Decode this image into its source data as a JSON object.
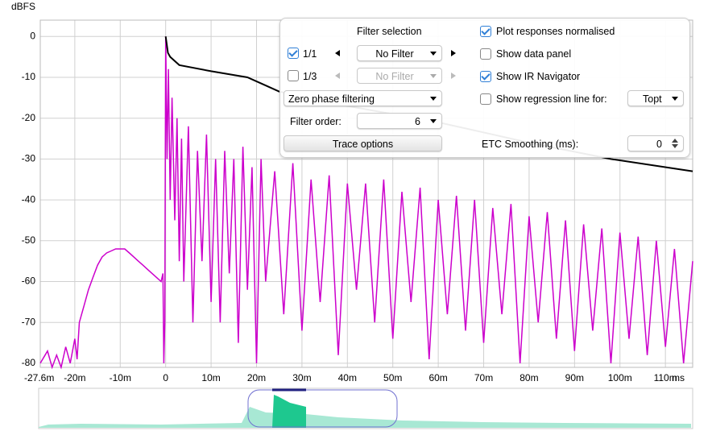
{
  "chart_data": {
    "type": "line",
    "y_label": "dBFS",
    "x_label": "ms",
    "xlim": [
      -27.6,
      116
    ],
    "ylim": [
      -81,
      4
    ],
    "xticks": [
      {
        "value": -27.6,
        "label": "-27.6m"
      },
      {
        "value": -20,
        "label": "-20m"
      },
      {
        "value": -10,
        "label": "-10m"
      },
      0,
      {
        "value": 10,
        "label": "10m"
      },
      {
        "value": 20,
        "label": "20m"
      },
      {
        "value": 30,
        "label": "30m"
      },
      {
        "value": 40,
        "label": "40m"
      },
      {
        "value": 50,
        "label": "50m"
      },
      {
        "value": 60,
        "label": "60m"
      },
      {
        "value": 70,
        "label": "70m"
      },
      {
        "value": 80,
        "label": "80m"
      },
      {
        "value": 90,
        "label": "90m"
      },
      {
        "value": 100,
        "label": "100m"
      },
      {
        "value": 110,
        "label": "110m"
      }
    ],
    "yticks": [
      0,
      -10,
      -20,
      -30,
      -40,
      -50,
      -60,
      -70,
      -80
    ],
    "grid": true,
    "series": [
      {
        "color": "#cc00cc",
        "x": [
          -27.6,
          -26,
          -25,
          -24,
          -23,
          -22,
          -21,
          -20,
          -19.5,
          -19,
          -18,
          -17,
          -16,
          -15,
          -14,
          -13,
          -12,
          -11,
          -10,
          -9,
          -8,
          -7,
          -6,
          -5,
          -4,
          -3,
          -2,
          -1,
          -0.6,
          -0.4,
          -0.2,
          0,
          0.3,
          0.6,
          1,
          1.4,
          2,
          2.5,
          3,
          3.5,
          4,
          5,
          6,
          7,
          8,
          9,
          10,
          11,
          12,
          13,
          14,
          15,
          16,
          17,
          18,
          19,
          20,
          21,
          22,
          24,
          26,
          28,
          30,
          32,
          34,
          36,
          38,
          40,
          42,
          44,
          46,
          48,
          50,
          52,
          54,
          56,
          58,
          60,
          62,
          64,
          66,
          68,
          70,
          72,
          74,
          76,
          78,
          80,
          82,
          84,
          86,
          88,
          90,
          92,
          94,
          96,
          98,
          100,
          102,
          104,
          106,
          108,
          110,
          112,
          114,
          116
        ],
        "values": [
          -80,
          -77,
          -81,
          -78,
          -81,
          -76,
          -80,
          -74,
          -79,
          -70,
          -66,
          -62,
          -59,
          -56,
          -54,
          -53,
          -52.5,
          -52,
          -52,
          -52,
          -53,
          -54,
          -55,
          -56,
          -57,
          -58,
          -59,
          -60,
          -58,
          -80,
          -70,
          0,
          -30,
          -8,
          -40,
          -15,
          -45,
          -20,
          -55,
          -25,
          -60,
          -22,
          -70,
          -28,
          -55,
          -24,
          -65,
          -30,
          -70,
          -28,
          -58,
          -30,
          -75,
          -27,
          -62,
          -32,
          -80,
          -30,
          -60,
          -33,
          -68,
          -31,
          -72,
          -35,
          -65,
          -34,
          -78,
          -36,
          -62,
          -36,
          -70,
          -35,
          -74,
          -38,
          -65,
          -37,
          -79,
          -40,
          -68,
          -39,
          -72,
          -40,
          -75,
          -42,
          -68,
          -41,
          -80,
          -44,
          -70,
          -43,
          -74,
          -45,
          -77,
          -46,
          -72,
          -47,
          -80,
          -48,
          -74,
          -49,
          -78,
          -50,
          -76,
          -52,
          -80,
          -55
        ]
      },
      {
        "color": "#000000",
        "x": [
          0,
          0.5,
          1,
          3,
          10,
          18,
          22,
          25,
          40,
          60,
          80,
          98,
          116
        ],
        "values": [
          0,
          -4,
          -5,
          -7,
          -8.5,
          -10,
          -12,
          -13.5,
          -17,
          -21,
          -26,
          -30,
          -33
        ]
      }
    ]
  },
  "panel": {
    "filter_selection": "Filter selection",
    "row1": {
      "checked": true,
      "label": "1/1",
      "dropdown": "No Filter"
    },
    "row2": {
      "checked": false,
      "label": "1/3",
      "dropdown": "No Filter"
    },
    "phase_dropdown": "Zero phase filtering",
    "filter_order_label": "Filter order:",
    "filter_order": "6",
    "trace_button": "Trace options",
    "options": [
      {
        "checked": true,
        "label": "Plot responses normalised"
      },
      {
        "checked": false,
        "label": "Show data panel"
      },
      {
        "checked": true,
        "label": "Show IR Navigator"
      },
      {
        "checked": false,
        "label": "Show regression line for:"
      }
    ],
    "regression_dropdown": "Topt",
    "smoothing_label": "ETC Smoothing (ms):",
    "smoothing_value": "0"
  }
}
